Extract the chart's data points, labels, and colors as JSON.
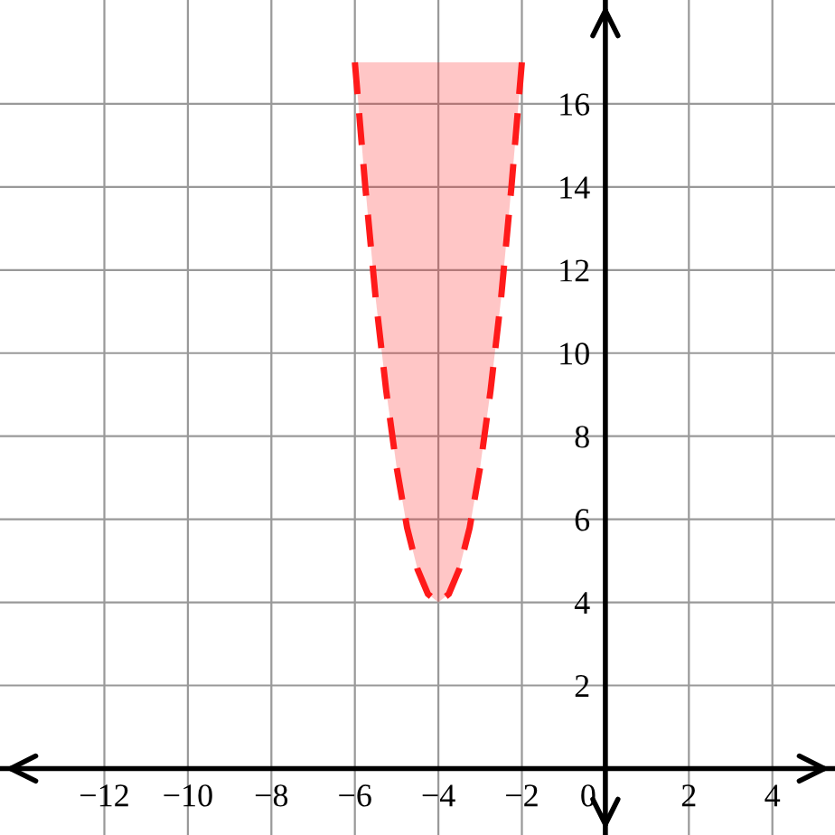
{
  "chart_data": {
    "type": "line",
    "series": [
      {
        "color": "#ff1a1a",
        "x": [
          -6,
          -5.75,
          -5.5,
          -5.25,
          -5,
          -4.75,
          -4.5,
          -4.25,
          -4,
          -3.75,
          -3.5,
          -3.25,
          -3,
          -2.75,
          -2.5,
          -2.25,
          -2
        ],
        "values": [
          17,
          14,
          11.3,
          9.1,
          7.25,
          5.8,
          4.8,
          4.2,
          4,
          4.2,
          4.8,
          5.8,
          7.25,
          9.1,
          11.3,
          14,
          17
        ],
        "lower": [
          17,
          14,
          11.3,
          9.1,
          7.25,
          5.8,
          4.8,
          4.2,
          4,
          4.2,
          4.8,
          5.8,
          7.25,
          9.1,
          11.3,
          14,
          17
        ],
        "upper": [
          17,
          17,
          17,
          17,
          17,
          17,
          17,
          17,
          17,
          17,
          17,
          17,
          17,
          17,
          17,
          17,
          17
        ]
      }
    ],
    "line_style": "dashed",
    "marker": "none",
    "grid": true,
    "legend": false,
    "xlim": [
      -14.5,
      5.5
    ],
    "ylim": [
      -1.6,
      18.5
    ],
    "xticks": [
      -12,
      -10,
      -8,
      -6,
      -4,
      -2,
      0,
      2,
      4
    ],
    "yticks": [
      2,
      4,
      6,
      8,
      10,
      12,
      14,
      16
    ]
  }
}
